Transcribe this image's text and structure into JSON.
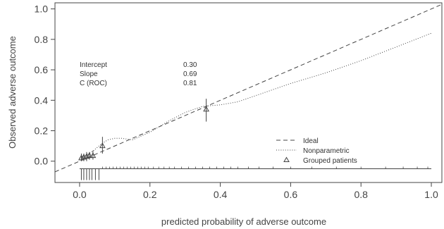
{
  "chart_data": {
    "type": "line",
    "title": "",
    "xlabel": "predicted probability of adverse outcome",
    "ylabel": "Observed adverse outcome",
    "xlim": [
      -0.07,
      1.03
    ],
    "ylim": [
      -0.14,
      1.04
    ],
    "x_ticks": [
      "0.0",
      "0.2",
      "0.4",
      "0.6",
      "0.8",
      "1.0"
    ],
    "y_ticks": [
      "0.0",
      "0.2",
      "0.4",
      "0.6",
      "0.8",
      "1.0"
    ],
    "colors": {
      "lines": "#444444",
      "frame": "#444444",
      "text": "#333333"
    },
    "stats": [
      {
        "label": "Intercept",
        "value": "0.30"
      },
      {
        "label": "Slope",
        "value": "0.69"
      },
      {
        "label": "C (ROC)",
        "value": "0.81"
      }
    ],
    "legend": {
      "placement": "bottom-right",
      "items": [
        {
          "label": "Ideal",
          "style": "dashed"
        },
        {
          "label": "Nonparametric",
          "style": "dotted"
        },
        {
          "label": "Grouped patients",
          "style": "triangle"
        }
      ]
    },
    "series": [
      {
        "name": "Ideal",
        "style": "dashed",
        "x": [
          -0.07,
          1.03
        ],
        "y": [
          -0.07,
          1.03
        ]
      },
      {
        "name": "Nonparametric",
        "style": "dotted",
        "x": [
          0.0,
          0.02,
          0.04,
          0.06,
          0.08,
          0.1,
          0.12,
          0.15,
          0.2,
          0.25,
          0.3,
          0.35,
          0.4,
          0.45,
          0.5,
          0.6,
          0.7,
          0.8,
          0.9,
          1.0
        ],
        "y": [
          0.02,
          0.04,
          0.07,
          0.11,
          0.14,
          0.15,
          0.15,
          0.14,
          0.19,
          0.26,
          0.32,
          0.36,
          0.37,
          0.39,
          0.43,
          0.51,
          0.58,
          0.66,
          0.75,
          0.84
        ]
      }
    ],
    "grouped_patients": {
      "name": "Grouped patients",
      "points": [
        {
          "x": 0.005,
          "y": 0.02,
          "lo": 0.0,
          "hi": 0.05
        },
        {
          "x": 0.012,
          "y": 0.025,
          "lo": 0.0,
          "hi": 0.05
        },
        {
          "x": 0.02,
          "y": 0.03,
          "lo": 0.0,
          "hi": 0.06
        },
        {
          "x": 0.028,
          "y": 0.035,
          "lo": 0.01,
          "hi": 0.06
        },
        {
          "x": 0.038,
          "y": 0.035,
          "lo": 0.01,
          "hi": 0.07
        },
        {
          "x": 0.065,
          "y": 0.1,
          "lo": 0.05,
          "hi": 0.16
        },
        {
          "x": 0.36,
          "y": 0.34,
          "lo": 0.26,
          "hi": 0.41
        }
      ]
    },
    "rug": {
      "long": [
        0.005,
        0.012,
        0.02,
        0.028,
        0.035,
        0.045,
        0.055
      ],
      "short": [
        0.065,
        0.075,
        0.085,
        0.095,
        0.105,
        0.115,
        0.125,
        0.135,
        0.145,
        0.155,
        0.165,
        0.175,
        0.185,
        0.195,
        0.21,
        0.225,
        0.24,
        0.255,
        0.27,
        0.29,
        0.31,
        0.33,
        0.35,
        0.37,
        0.39,
        0.41,
        0.43,
        0.45,
        0.48,
        0.51,
        0.55,
        0.6,
        0.66,
        0.73,
        0.8,
        0.87,
        0.92,
        0.96,
        0.99
      ]
    }
  }
}
